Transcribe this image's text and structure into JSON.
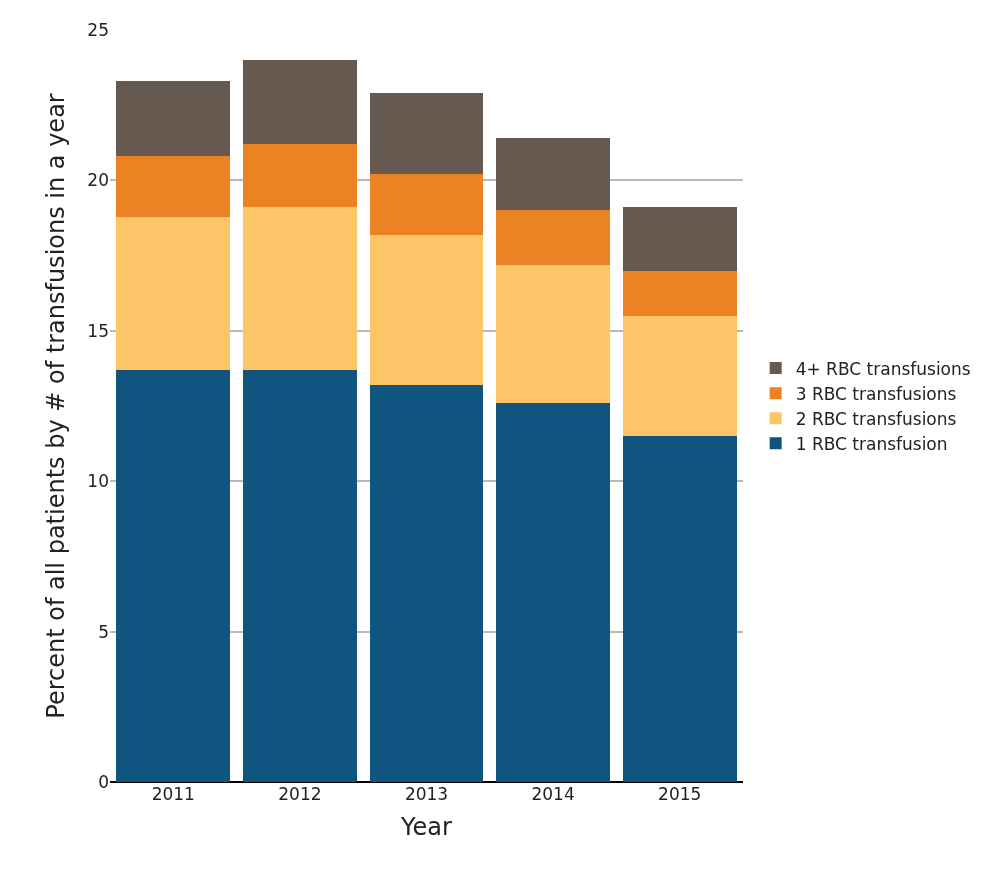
{
  "chart_data": {
    "type": "bar",
    "stacked": true,
    "xlabel": "Year",
    "ylabel": "Percent of all patients by # of transfusions in a year",
    "categories": [
      "2011",
      "2012",
      "2013",
      "2014",
      "2015"
    ],
    "series": [
      {
        "name": "1 RBC transfusion",
        "color": "#10557f",
        "values": [
          13.7,
          13.7,
          13.2,
          12.6,
          11.5
        ]
      },
      {
        "name": "2 RBC transfusions",
        "color": "#fdc468",
        "values": [
          5.1,
          5.4,
          5.0,
          4.6,
          4.0
        ]
      },
      {
        "name": "3 RBC transfusions",
        "color": "#eb8223",
        "values": [
          2.0,
          2.1,
          2.0,
          1.8,
          1.5
        ]
      },
      {
        "name": "4+ RBC transfusions",
        "color": "#665a50",
        "values": [
          2.5,
          2.8,
          2.7,
          2.4,
          2.1
        ]
      }
    ],
    "ylim": [
      0,
      25
    ],
    "yticks": [
      0,
      5,
      10,
      15,
      20,
      25
    ],
    "grid": "y",
    "legend": "right"
  }
}
